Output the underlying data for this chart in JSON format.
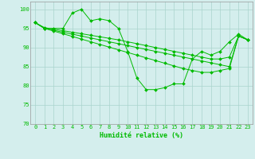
{
  "x_values": [
    0,
    1,
    2,
    3,
    4,
    5,
    6,
    7,
    8,
    9,
    10,
    11,
    12,
    13,
    14,
    15,
    16,
    17,
    18,
    19,
    20,
    21,
    22,
    23
  ],
  "line1": [
    96.5,
    95.0,
    95.0,
    95.0,
    99.0,
    100.0,
    97.0,
    97.5,
    97.0,
    95.0,
    89.0,
    82.0,
    79.0,
    79.0,
    79.5,
    80.5,
    80.5,
    87.0,
    89.0,
    88.0,
    89.0,
    91.5,
    93.5,
    92.0
  ],
  "line2": [
    96.5,
    95.2,
    94.8,
    94.4,
    94.0,
    93.6,
    93.2,
    92.8,
    92.4,
    92.0,
    91.5,
    91.0,
    90.5,
    90.0,
    89.5,
    89.0,
    88.5,
    88.0,
    87.5,
    87.0,
    87.0,
    87.5,
    93.0,
    92.0
  ],
  "line3": [
    96.5,
    95.0,
    94.5,
    94.0,
    93.5,
    93.0,
    92.5,
    92.0,
    91.5,
    91.0,
    90.5,
    90.0,
    89.5,
    89.0,
    88.5,
    88.0,
    87.5,
    87.0,
    86.5,
    86.0,
    85.5,
    85.0,
    93.0,
    92.0
  ],
  "line4": [
    96.5,
    95.0,
    94.3,
    93.6,
    92.9,
    92.2,
    91.5,
    90.8,
    90.1,
    89.4,
    88.7,
    88.0,
    87.3,
    86.6,
    85.9,
    85.2,
    84.5,
    84.0,
    83.5,
    83.5,
    84.0,
    84.5,
    93.0,
    92.0
  ],
  "line_color": "#00bb00",
  "bg_color": "#d4eeed",
  "grid_color": "#aad4cc",
  "xlabel": "Humidité relative (%)",
  "ylim": [
    70,
    102
  ],
  "xlim": [
    -0.5,
    23.5
  ],
  "yticks": [
    70,
    75,
    80,
    85,
    90,
    95,
    100
  ],
  "xticks": [
    0,
    1,
    2,
    3,
    4,
    5,
    6,
    7,
    8,
    9,
    10,
    11,
    12,
    13,
    14,
    15,
    16,
    17,
    18,
    19,
    20,
    21,
    22,
    23
  ],
  "tick_fontsize": 5.0,
  "xlabel_fontsize": 6.0,
  "linewidth": 0.7,
  "markersize": 2.0
}
